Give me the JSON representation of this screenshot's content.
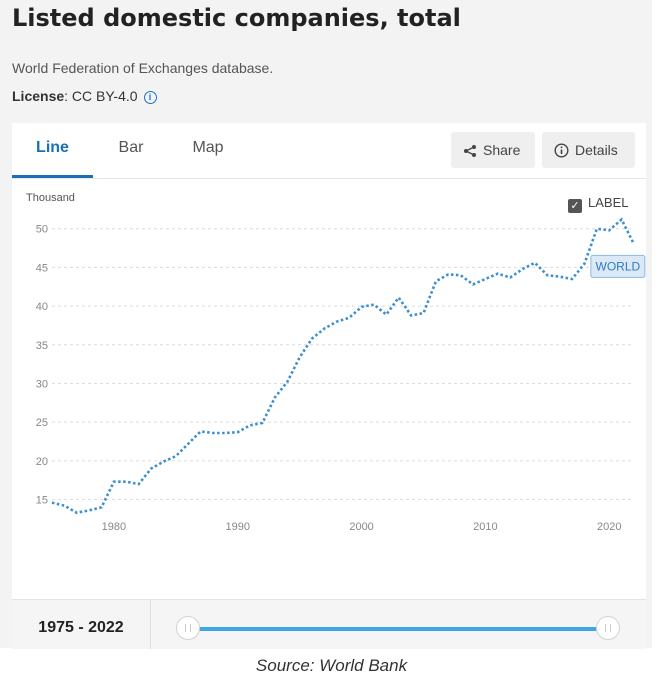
{
  "header": {
    "title": "Listed domestic companies, total",
    "source": "World Federation of Exchanges database.",
    "license_label": "License",
    "license_value": ": CC BY-4.0"
  },
  "tabs": [
    {
      "label": "Line",
      "active": true
    },
    {
      "label": "Bar",
      "active": false
    },
    {
      "label": "Map",
      "active": false
    }
  ],
  "actions": {
    "share_label": "Share",
    "details_label": "Details"
  },
  "label_toggle": {
    "label": "LABEL",
    "checked": true
  },
  "range": {
    "label": "1975 - 2022",
    "start": 1975,
    "end": 2022
  },
  "caption": "Source: World Bank",
  "colors": {
    "line": "#3a8fd1",
    "accent": "#1a6fb5",
    "slider": "#3ea6e6"
  },
  "chart_data": {
    "type": "line",
    "ylabel": "Thousand",
    "xlabel": "",
    "ylim": [
      13,
      51
    ],
    "xlim": [
      1975,
      2022
    ],
    "x_ticks": [
      1980,
      1990,
      2000,
      2010,
      2020
    ],
    "y_ticks": [
      15,
      20,
      25,
      30,
      35,
      40,
      45,
      50
    ],
    "grid": true,
    "series": [
      {
        "name": "WORLD",
        "x": [
          1975,
          1976,
          1977,
          1978,
          1979,
          1980,
          1981,
          1982,
          1983,
          1984,
          1985,
          1986,
          1987,
          1988,
          1989,
          1990,
          1991,
          1992,
          1993,
          1994,
          1995,
          1996,
          1997,
          1998,
          1999,
          2000,
          2001,
          2002,
          2003,
          2004,
          2005,
          2006,
          2007,
          2008,
          2009,
          2010,
          2011,
          2012,
          2013,
          2014,
          2015,
          2016,
          2017,
          2018,
          2019,
          2020,
          2021,
          2022
        ],
        "values": [
          14.6,
          14.2,
          13.3,
          13.6,
          14.0,
          17.3,
          17.3,
          17.0,
          19.0,
          19.9,
          20.6,
          22.2,
          23.8,
          23.6,
          23.6,
          23.7,
          24.6,
          24.9,
          28.2,
          30.2,
          33.4,
          35.8,
          37.1,
          38.0,
          38.5,
          39.9,
          40.2,
          38.9,
          41.1,
          38.8,
          39.1,
          43.2,
          44.1,
          44.0,
          42.8,
          43.5,
          44.2,
          43.7,
          44.8,
          45.6,
          44.0,
          43.8,
          43.5,
          45.5,
          50.0,
          49.8,
          51.2,
          48.0
        ]
      }
    ],
    "annotations": [
      "WORLD"
    ]
  }
}
